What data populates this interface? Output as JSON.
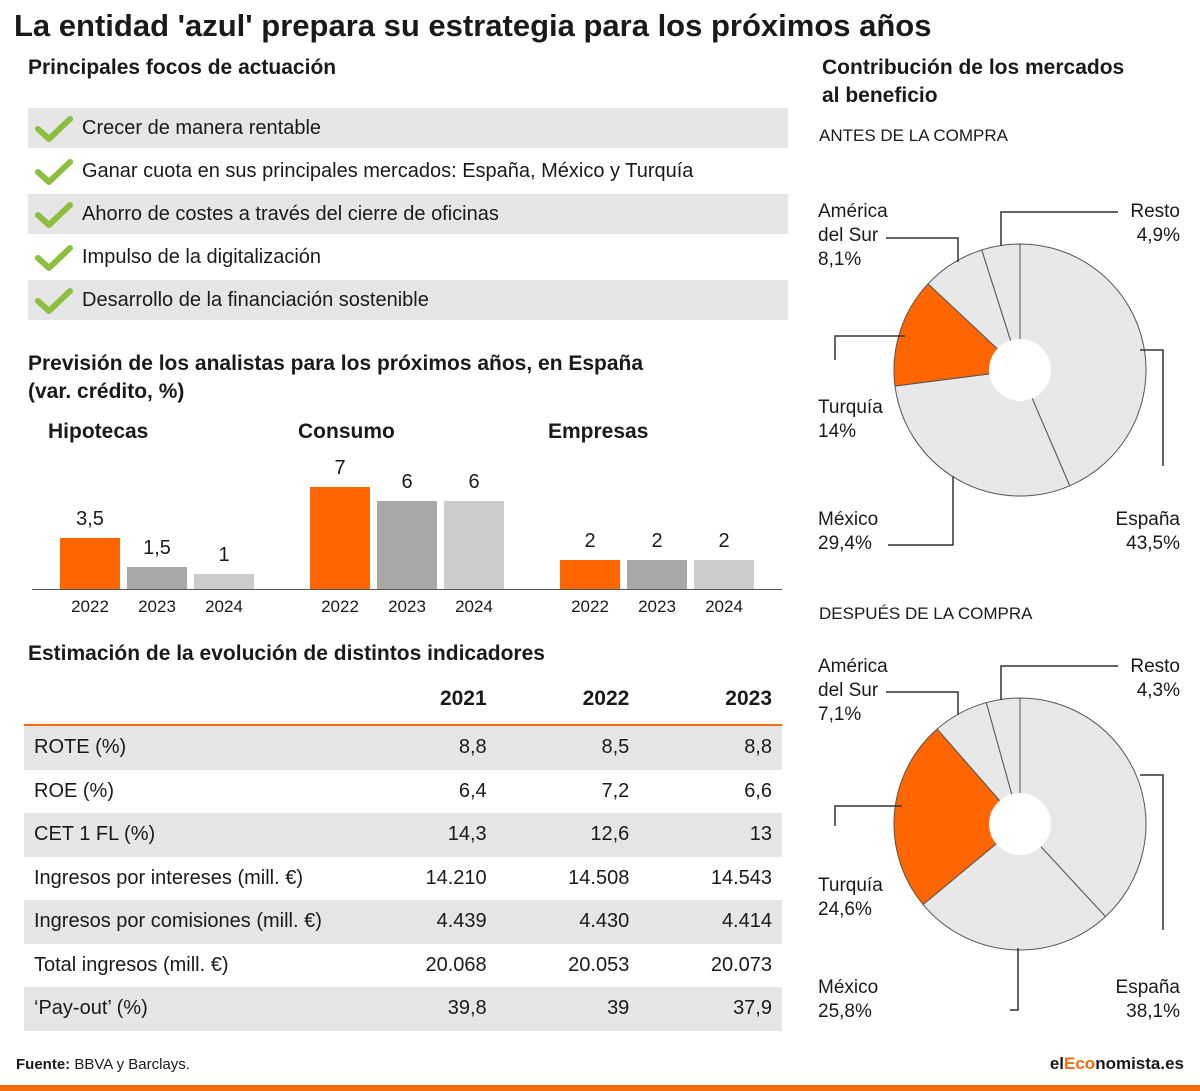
{
  "title": "La entidad 'azul' prepara su estrategia para los próximos años",
  "focus": {
    "heading": "Principales focos de actuación",
    "items": [
      "Crecer de manera rentable",
      "Ganar cuota en sus principales mercados: España, México y Turquía",
      "Ahorro de costes a través del cierre de oficinas",
      "Impulso de la digitalización",
      "Desarrollo de la financiación sostenible"
    ],
    "icon": "check-icon",
    "check_color": "#8cbf3f"
  },
  "forecast": {
    "heading_line1": "Previsión de los analistas para los próximos años, en España",
    "heading_line2": "(var. crédito, %)"
  },
  "indicators": {
    "heading": "Estimación de la evolución de distintos indicadores",
    "columns": [
      "2021",
      "2022",
      "2023"
    ],
    "rows": [
      {
        "label": "ROTE (%)",
        "values": [
          "8,8",
          "8,5",
          "8,8"
        ]
      },
      {
        "label": "ROE (%)",
        "values": [
          "6,4",
          "7,2",
          "6,6"
        ]
      },
      {
        "label": "CET 1 FL (%)",
        "values": [
          "14,3",
          "12,6",
          "13"
        ]
      },
      {
        "label": "Ingresos por intereses (mill. €)",
        "values": [
          "14.210",
          "14.508",
          "14.543"
        ]
      },
      {
        "label": "Ingresos por comisiones (mill. €)",
        "values": [
          "4.439",
          "4.430",
          "4.414"
        ]
      },
      {
        "label": "Total ingresos (mill. €)",
        "values": [
          "20.068",
          "20.053",
          "20.073"
        ]
      },
      {
        "label": "‘Pay-out’ (%)",
        "values": [
          "39,8",
          "39",
          "37,9"
        ]
      }
    ]
  },
  "markets": {
    "heading_line1": "Contribución de los mercados",
    "heading_line2": "al beneficio",
    "before_label": "ANTES DE LA COMPRA",
    "after_label": "DESPUÉS DE LA COMPRA",
    "label_america_1": "América",
    "label_america_2": "del Sur",
    "label_resto": "Resto",
    "label_turquia": "Turquía",
    "label_mexico": "México",
    "label_espana": "España",
    "before_values": {
      "america": "8,1%",
      "resto": "4,9%",
      "turquia": "14%",
      "mexico": "29,4%",
      "espana": "43,5%"
    },
    "after_values": {
      "america": "7,1%",
      "resto": "4,3%",
      "turquia": "24,6%",
      "mexico": "25,8%",
      "espana": "38,1%"
    }
  },
  "chart_data": [
    {
      "type": "bar",
      "title": "Hipotecas",
      "categories": [
        "2022",
        "2023",
        "2024"
      ],
      "values": [
        3.5,
        1.5,
        1
      ],
      "value_labels": [
        "3,5",
        "1,5",
        "1"
      ],
      "colors": [
        "#ff6600",
        "#a8a8a8",
        "#cccccc"
      ],
      "ylim": [
        0,
        7
      ]
    },
    {
      "type": "bar",
      "title": "Consumo",
      "categories": [
        "2022",
        "2023",
        "2024"
      ],
      "values": [
        7,
        6,
        6
      ],
      "value_labels": [
        "7",
        "6",
        "6"
      ],
      "colors": [
        "#ff6600",
        "#a8a8a8",
        "#cccccc"
      ],
      "ylim": [
        0,
        7
      ]
    },
    {
      "type": "bar",
      "title": "Empresas",
      "categories": [
        "2022",
        "2023",
        "2024"
      ],
      "values": [
        2,
        2,
        2
      ],
      "value_labels": [
        "2",
        "2",
        "2"
      ],
      "colors": [
        "#ff6600",
        "#a8a8a8",
        "#cccccc"
      ],
      "ylim": [
        0,
        7
      ]
    },
    {
      "type": "pie",
      "title": "ANTES DE LA COMPRA",
      "slices": [
        {
          "label": "España",
          "value": 43.5
        },
        {
          "label": "México",
          "value": 29.4
        },
        {
          "label": "Turquía",
          "value": 14.0
        },
        {
          "label": "América del Sur",
          "value": 8.1
        },
        {
          "label": "Resto",
          "value": 4.9
        }
      ],
      "highlight": "Turquía",
      "highlight_color": "#ff6600",
      "base_color": "#e8e8e8"
    },
    {
      "type": "pie",
      "title": "DESPUÉS DE LA COMPRA",
      "slices": [
        {
          "label": "España",
          "value": 38.1
        },
        {
          "label": "México",
          "value": 25.8
        },
        {
          "label": "Turquía",
          "value": 24.6
        },
        {
          "label": "América del Sur",
          "value": 7.1
        },
        {
          "label": "Resto",
          "value": 4.3
        }
      ],
      "highlight": "Turquía",
      "highlight_color": "#ff6600",
      "base_color": "#e8e8e8"
    }
  ],
  "footer": {
    "source_bold": "Fuente:",
    "source_text": " BBVA y Barclays.",
    "brand_a": "el",
    "brand_b": "Eco",
    "brand_c": "nomista.es"
  }
}
